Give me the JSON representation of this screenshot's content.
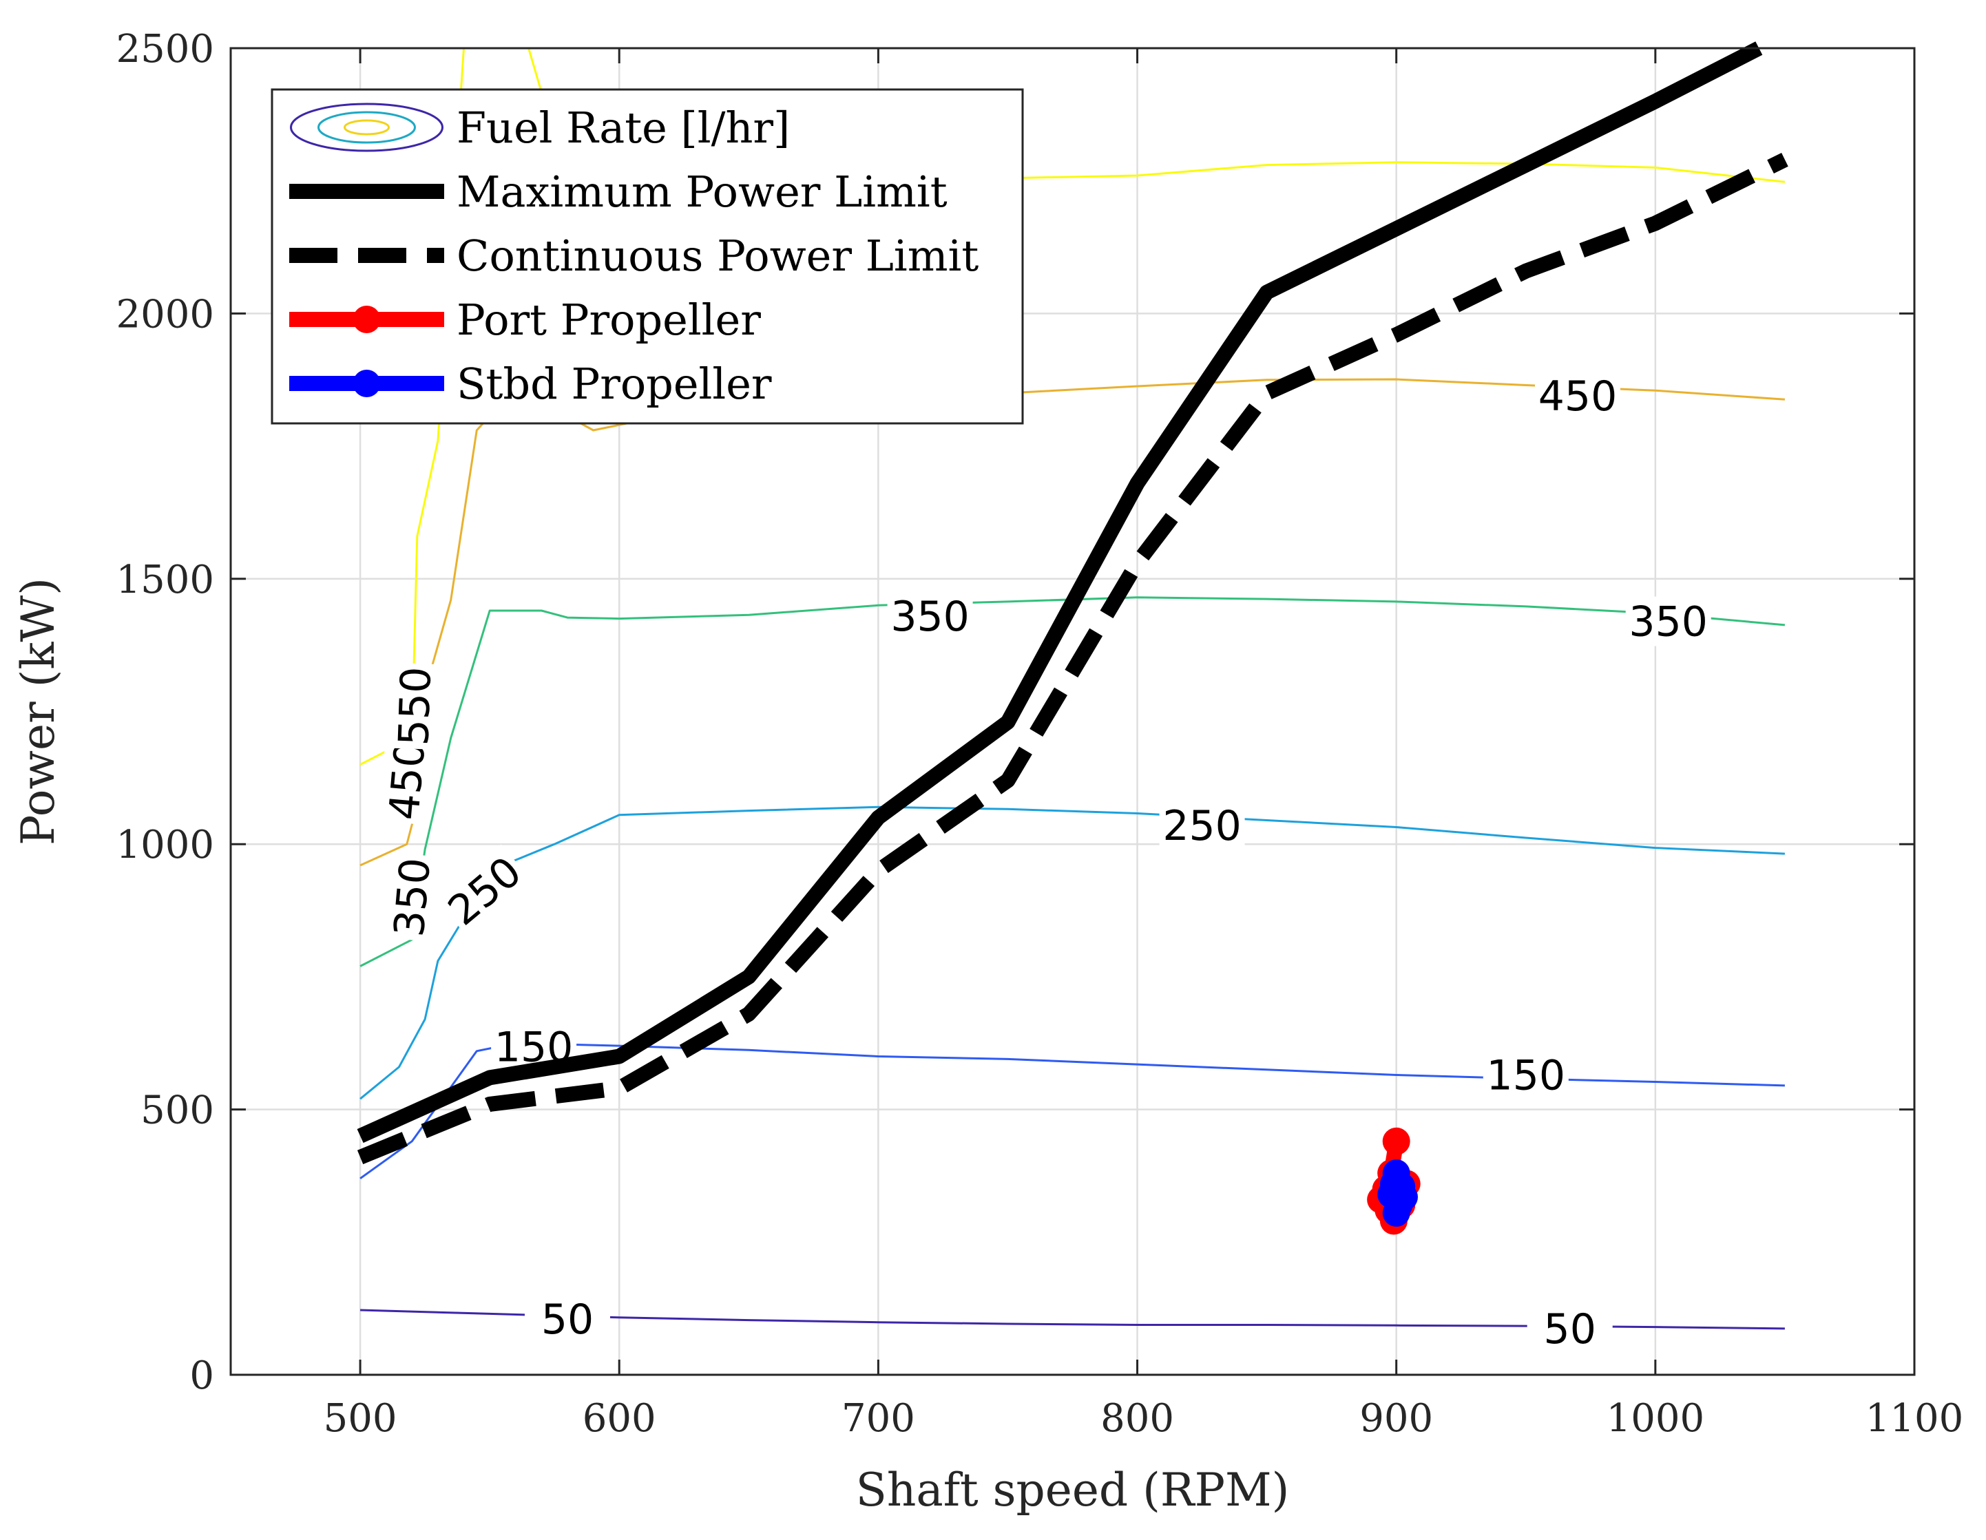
{
  "chart_data": {
    "type": "line",
    "xlabel": "Shaft speed (RPM)",
    "ylabel": "Power (kW)",
    "xlim": [
      450,
      1100
    ],
    "ylim": [
      0,
      2500
    ],
    "x_ticks": [
      500,
      600,
      700,
      800,
      900,
      1000,
      1100
    ],
    "y_ticks": [
      0,
      500,
      1000,
      1500,
      2000,
      2500
    ],
    "grid": true,
    "legend_position": "top-left",
    "legend": [
      {
        "key": "fuel",
        "label": "Fuel Rate [l/hr]"
      },
      {
        "key": "max",
        "label": "Maximum Power Limit"
      },
      {
        "key": "cont",
        "label": "Continuous Power Limit"
      },
      {
        "key": "port",
        "label": "Port Propeller"
      },
      {
        "key": "stbd",
        "label": "Stbd Propeller"
      }
    ],
    "series": [
      {
        "name": "Maximum Power Limit",
        "color": "#000000",
        "style": "solid",
        "points": [
          [
            500,
            450
          ],
          [
            550,
            560
          ],
          [
            600,
            600
          ],
          [
            650,
            750
          ],
          [
            700,
            1050
          ],
          [
            750,
            1230
          ],
          [
            800,
            1680
          ],
          [
            850,
            2040
          ],
          [
            900,
            2160
          ],
          [
            950,
            2280
          ],
          [
            1000,
            2400
          ],
          [
            1040,
            2500
          ]
        ]
      },
      {
        "name": "Continuous Power Limit",
        "color": "#000000",
        "style": "dashed",
        "points": [
          [
            500,
            410
          ],
          [
            550,
            510
          ],
          [
            600,
            540
          ],
          [
            650,
            680
          ],
          [
            700,
            950
          ],
          [
            750,
            1120
          ],
          [
            800,
            1530
          ],
          [
            850,
            1850
          ],
          [
            900,
            1960
          ],
          [
            950,
            2080
          ],
          [
            1000,
            2170
          ],
          [
            1050,
            2290
          ]
        ]
      },
      {
        "name": "Port Propeller",
        "color": "#ff0000",
        "points": [
          [
            900,
            440
          ],
          [
            898,
            380
          ],
          [
            896,
            350
          ],
          [
            894,
            330
          ],
          [
            897,
            310
          ],
          [
            899,
            290
          ],
          [
            902,
            320
          ],
          [
            904,
            360
          ]
        ]
      },
      {
        "name": "Stbd Propeller",
        "color": "#0000ff",
        "points": [
          [
            900,
            380
          ],
          [
            899,
            360
          ],
          [
            898,
            340
          ],
          [
            901,
            320
          ],
          [
            900,
            305
          ],
          [
            903,
            335
          ],
          [
            902,
            355
          ]
        ]
      }
    ],
    "contours": [
      {
        "level": 50,
        "color": "#3e26a8",
        "points": [
          [
            500,
            122
          ],
          [
            550,
            115
          ],
          [
            600,
            108
          ],
          [
            650,
            103
          ],
          [
            700,
            99
          ],
          [
            750,
            96
          ],
          [
            800,
            94
          ],
          [
            850,
            94
          ],
          [
            900,
            93
          ],
          [
            950,
            92
          ],
          [
            1000,
            90
          ],
          [
            1050,
            87
          ]
        ],
        "labels": [
          {
            "text": "50",
            "x": 580,
            "y": 105
          },
          {
            "text": "50",
            "x": 967,
            "y": 87
          }
        ]
      },
      {
        "level": 150,
        "color": "#2f5bf2",
        "points": [
          [
            500,
            370
          ],
          [
            520,
            440
          ],
          [
            545,
            610
          ],
          [
            560,
            625
          ],
          [
            600,
            620
          ],
          [
            650,
            612
          ],
          [
            700,
            600
          ],
          [
            750,
            595
          ],
          [
            800,
            585
          ],
          [
            850,
            575
          ],
          [
            900,
            565
          ],
          [
            950,
            558
          ],
          [
            1000,
            552
          ],
          [
            1050,
            545
          ]
        ],
        "labels": [
          {
            "text": "150",
            "x": 567,
            "y": 618
          },
          {
            "text": "150",
            "x": 950,
            "y": 565
          }
        ]
      },
      {
        "level": 250,
        "color": "#1da1dc",
        "points": [
          [
            500,
            520
          ],
          [
            515,
            580
          ],
          [
            525,
            670
          ],
          [
            530,
            780
          ],
          [
            540,
            860
          ],
          [
            550,
            950
          ],
          [
            575,
            1000
          ],
          [
            600,
            1055
          ],
          [
            650,
            1063
          ],
          [
            700,
            1070
          ],
          [
            750,
            1066
          ],
          [
            800,
            1058
          ],
          [
            850,
            1045
          ],
          [
            900,
            1032
          ],
          [
            950,
            1012
          ],
          [
            1000,
            993
          ],
          [
            1050,
            982
          ]
        ],
        "labels": [
          {
            "text": "250",
            "x": 548,
            "y": 912,
            "rotate": -40
          },
          {
            "text": "250",
            "x": 825,
            "y": 1035
          }
        ]
      },
      {
        "level": 350,
        "color": "#33c07c",
        "points": [
          [
            500,
            770
          ],
          [
            520,
            820
          ],
          [
            525,
            990
          ],
          [
            535,
            1200
          ],
          [
            550,
            1440
          ],
          [
            570,
            1440
          ],
          [
            580,
            1427
          ],
          [
            600,
            1425
          ],
          [
            650,
            1432
          ],
          [
            700,
            1450
          ],
          [
            750,
            1457
          ],
          [
            800,
            1465
          ],
          [
            850,
            1462
          ],
          [
            900,
            1457
          ],
          [
            950,
            1448
          ],
          [
            1000,
            1435
          ],
          [
            1050,
            1413
          ]
        ],
        "labels": [
          {
            "text": "350",
            "x": 520,
            "y": 900,
            "rotate": -85
          },
          {
            "text": "350",
            "x": 720,
            "y": 1430
          },
          {
            "text": "350",
            "x": 1005,
            "y": 1420
          }
        ]
      },
      {
        "level": 450,
        "color": "#e8b12f",
        "points": [
          [
            500,
            960
          ],
          [
            518,
            1000
          ],
          [
            525,
            1130
          ],
          [
            528,
            1340
          ],
          [
            535,
            1460
          ],
          [
            545,
            1780
          ],
          [
            560,
            1860
          ],
          [
            590,
            1780
          ],
          [
            610,
            1800
          ],
          [
            650,
            1815
          ],
          [
            700,
            1830
          ],
          [
            750,
            1850
          ],
          [
            800,
            1863
          ],
          [
            850,
            1875
          ],
          [
            900,
            1876
          ],
          [
            950,
            1865
          ],
          [
            1000,
            1855
          ],
          [
            1050,
            1838
          ]
        ],
        "labels": [
          {
            "text": "450",
            "x": 518,
            "y": 1120,
            "rotate": -85
          },
          {
            "text": "450",
            "x": 970,
            "y": 1845
          }
        ]
      },
      {
        "level": 550,
        "color": "#f9fb0e",
        "points": [
          [
            500,
            1150
          ],
          [
            520,
            1200
          ],
          [
            522,
            1580
          ],
          [
            530,
            1760
          ],
          [
            540,
            2500
          ]
        ],
        "labels": [
          {
            "text": "550",
            "x": 521,
            "y": 1260,
            "rotate": -88
          }
        ]
      },
      {
        "level": 550,
        "color": "#f9fb0e",
        "points": [
          [
            565,
            2500
          ],
          [
            580,
            2250
          ],
          [
            650,
            2240
          ],
          [
            700,
            2250
          ],
          [
            750,
            2255
          ],
          [
            800,
            2260
          ],
          [
            850,
            2280
          ],
          [
            900,
            2285
          ],
          [
            950,
            2282
          ],
          [
            1000,
            2275
          ],
          [
            1050,
            2248
          ]
        ],
        "labels": []
      }
    ]
  }
}
